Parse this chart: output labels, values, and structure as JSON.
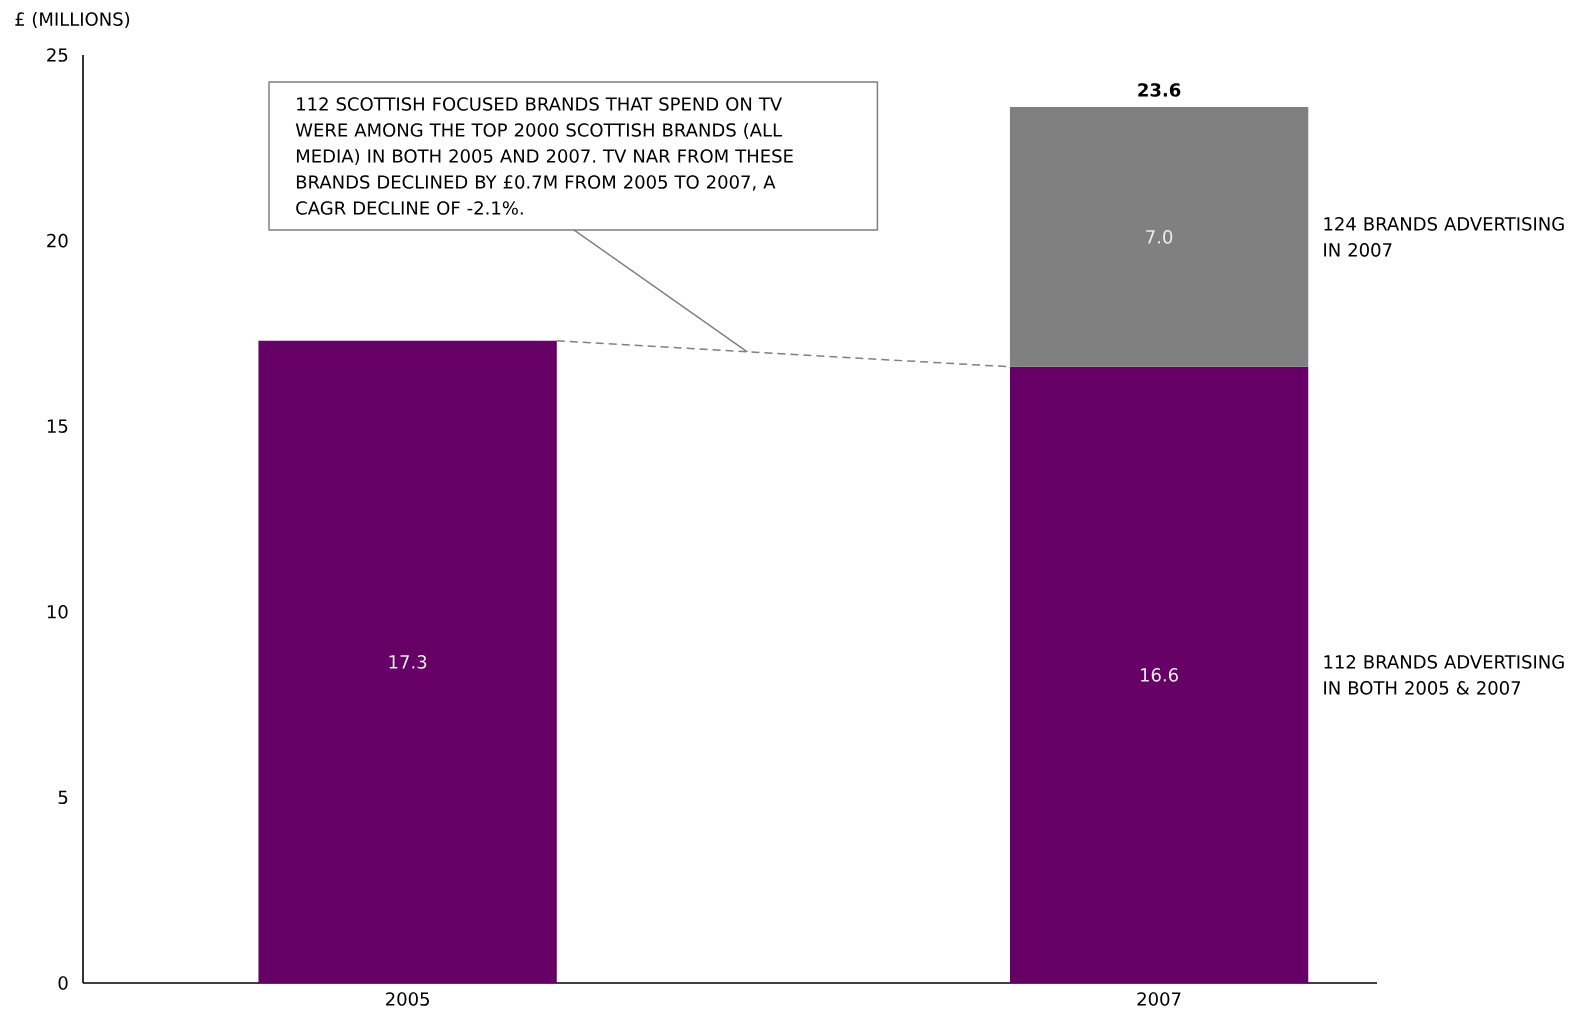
{
  "chart_data": {
    "type": "bar",
    "stacked": true,
    "ylabel": "£ (MILLIONS)",
    "categories": [
      "2005",
      "2007"
    ],
    "series": [
      {
        "name": "112 BRANDS ADVERTISING IN BOTH 2005 & 2007",
        "color": "#660066",
        "values": [
          17.3,
          16.6
        ],
        "value_labels": [
          "17.3",
          "16.6"
        ]
      },
      {
        "name": "124 BRANDS ADVERTISING IN 2007",
        "color": "#808080",
        "values": [
          null,
          7.0
        ],
        "value_labels": [
          null,
          "7.0"
        ]
      }
    ],
    "ylim": [
      0,
      25
    ],
    "yticks": [
      0,
      5,
      10,
      15,
      20,
      25
    ],
    "totals": [
      null,
      "23.6"
    ],
    "annotations": [
      "112 SCOTTISH FOCUSED BRANDS THAT SPEND ON TV WERE AMONG THE TOP 2000 SCOTTISH BRANDS (ALL MEDIA) IN BOTH 2005 AND 2007. TV NAR FROM THESE BRANDS DECLINED BY £0.7M FROM 2005 TO 2007, A CAGR DECLINE OF -2.1%."
    ]
  }
}
